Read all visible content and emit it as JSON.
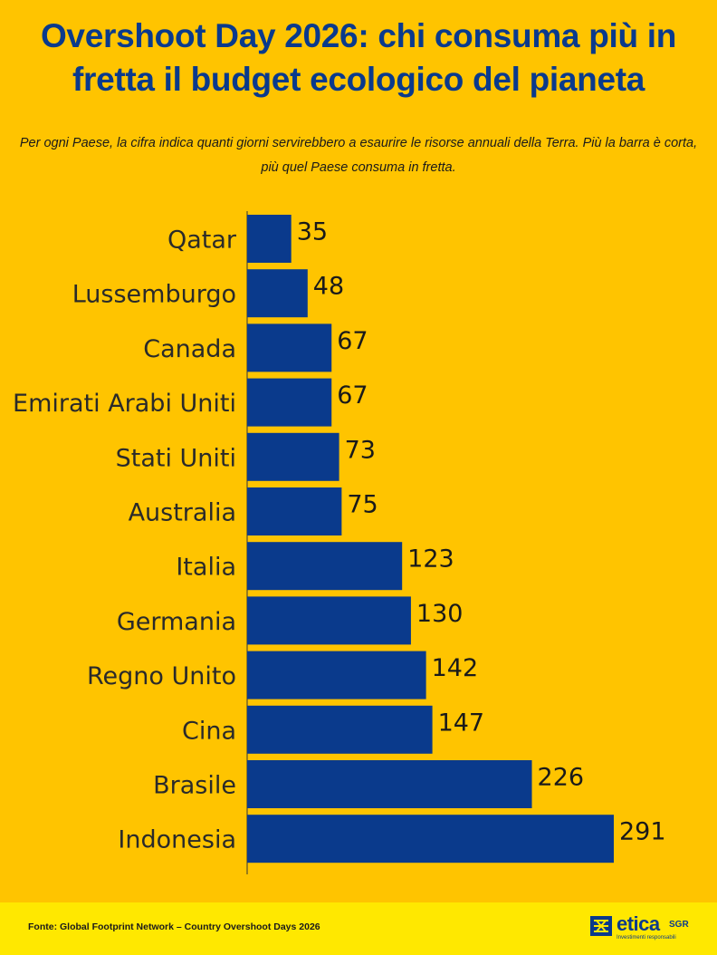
{
  "title": "Overshoot Day 2026: chi consuma più in fretta il budget ecologico del pianeta",
  "subtitle": "Per ogni Paese, la cifra indica quanti giorni servirebbero a esaurire le risorse annuali della Terra. Più la barra è corta, più quel Paese consuma in fretta.",
  "footer": {
    "source": "Fonte: Global Footprint Network – Country Overshoot Days 2026",
    "logo_word": "etica",
    "logo_sgr": "SGR",
    "logo_tagline": "Investimenti responsabili"
  },
  "colors": {
    "background": "#FFC400",
    "bar": "#0A3A8C",
    "title": "#0A3A8C",
    "footer_band": "#FFE800"
  },
  "chart_data": {
    "type": "bar",
    "orientation": "horizontal",
    "categories": [
      "Qatar",
      "Lussemburgo",
      "Canada",
      "Emirati Arabi Uniti",
      "Stati Uniti",
      "Australia",
      "Italia",
      "Germania",
      "Regno Unito",
      "Cina",
      "Brasile",
      "Indonesia"
    ],
    "values": [
      35,
      48,
      67,
      67,
      73,
      75,
      123,
      130,
      142,
      147,
      226,
      291
    ],
    "title": "",
    "xlabel": "",
    "ylabel": "",
    "data_labels": true,
    "grid": false,
    "legend": "none"
  }
}
